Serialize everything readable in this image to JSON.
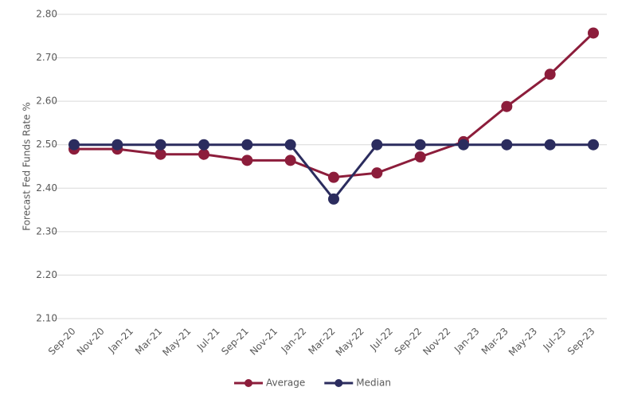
{
  "chart_data": {
    "type": "line",
    "y_label": "Forecast Fed Funds Rate %",
    "categories": [
      "Sep-20",
      null,
      "Nov-20",
      null,
      "Jan-21",
      null,
      "Mar-21",
      null,
      "May-21",
      null,
      "Jul-21",
      null,
      "Sep-21",
      null,
      "Nov-21",
      null,
      "Jan-22",
      null,
      "Mar-22",
      null,
      "May-22",
      null,
      "Jul-22",
      null,
      "Sep-22",
      null,
      "Nov-22",
      null,
      "Jan-23",
      null,
      "Mar-23",
      null,
      "May-23",
      null,
      "Jul-23",
      null,
      "Sep-23"
    ],
    "series": [
      {
        "name": "Average",
        "color": "#8c1d3b",
        "values": [
          2.49,
          null,
          null,
          2.49,
          null,
          null,
          2.478,
          null,
          null,
          2.478,
          null,
          null,
          2.464,
          null,
          null,
          2.464,
          null,
          null,
          2.425,
          null,
          null,
          2.435,
          null,
          null,
          2.472,
          null,
          null,
          2.507,
          null,
          null,
          2.588,
          null,
          null,
          2.662,
          null,
          null,
          2.757
        ]
      },
      {
        "name": "Median",
        "color": "#2b2c5e",
        "values": [
          2.5,
          null,
          null,
          2.5,
          null,
          null,
          2.5,
          null,
          null,
          2.5,
          null,
          null,
          2.5,
          null,
          null,
          2.5,
          null,
          null,
          2.375,
          null,
          null,
          2.5,
          null,
          null,
          2.5,
          null,
          null,
          2.5,
          null,
          null,
          2.5,
          null,
          null,
          2.5,
          null,
          null,
          2.5
        ]
      }
    ],
    "ylim": [
      2.1,
      2.8
    ],
    "yticks": [
      {
        "value": 2.1,
        "label": "2.10"
      },
      {
        "value": 2.2,
        "label": "2.20"
      },
      {
        "value": 2.3,
        "label": "2.30"
      },
      {
        "value": 2.4,
        "label": "2.40"
      },
      {
        "value": 2.5,
        "label": "2.50"
      },
      {
        "value": 2.6,
        "label": "2.60"
      },
      {
        "value": 2.7,
        "label": "2.70"
      },
      {
        "value": 2.8,
        "label": "2.80"
      }
    ],
    "grid": true,
    "legend": "bottom"
  }
}
